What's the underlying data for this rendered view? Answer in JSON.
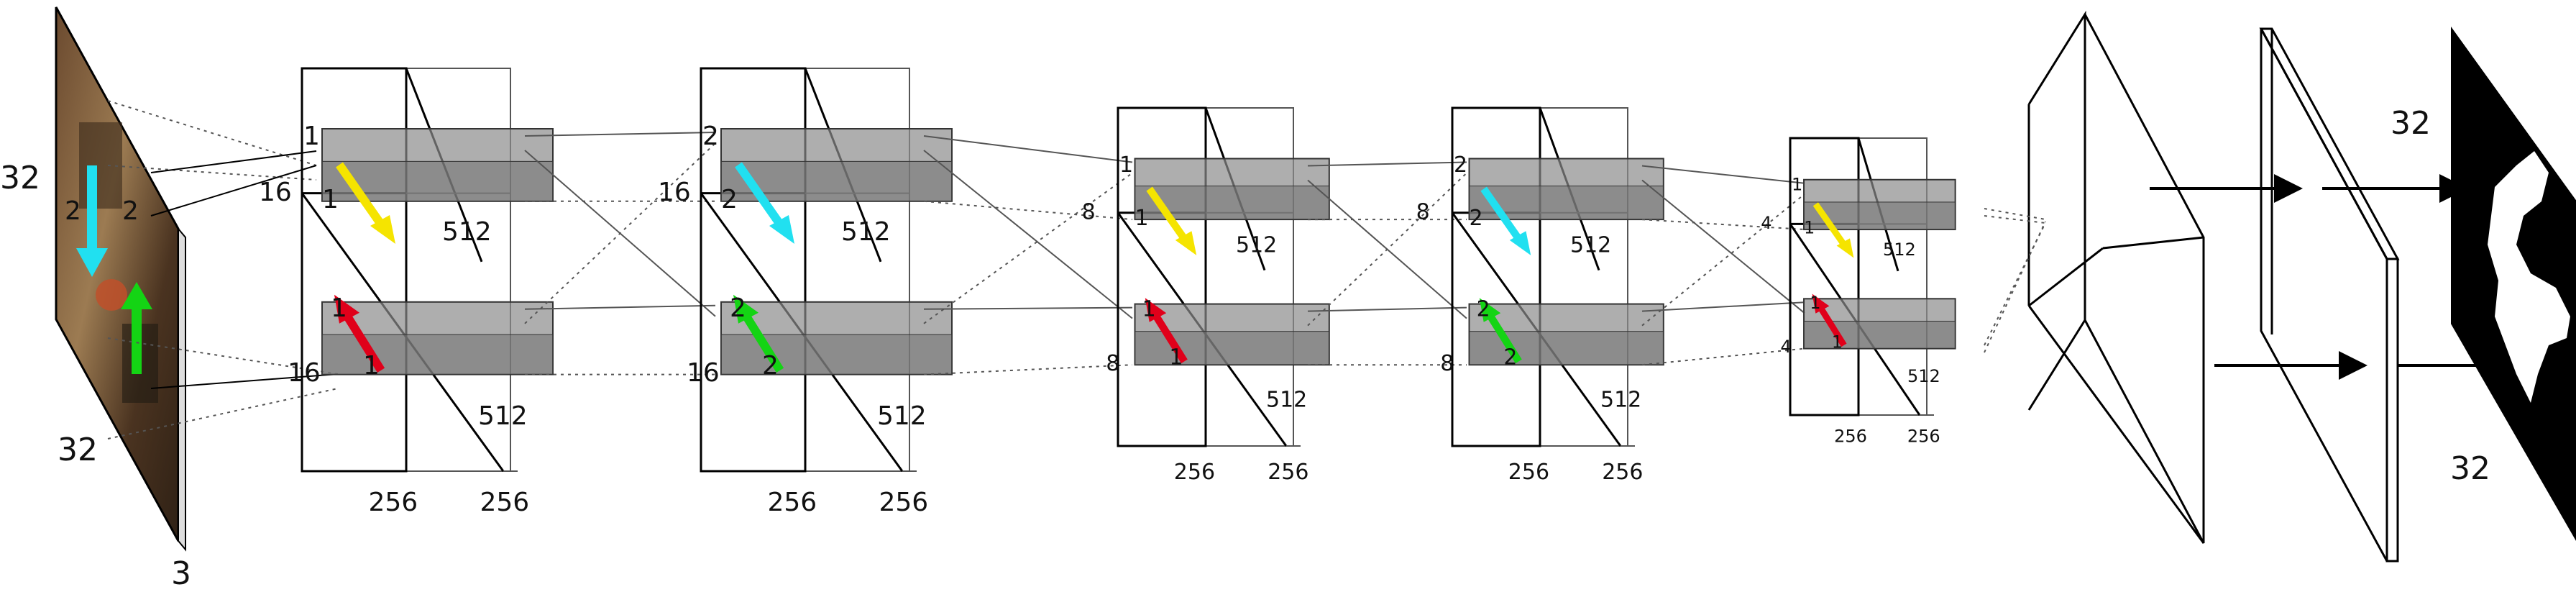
{
  "input": {
    "side_label": "32",
    "bottom_label": "32",
    "depth_label": "3",
    "kernel_label_a": "2",
    "kernel_label_b": "2"
  },
  "blocks": [
    {
      "label_kernel_top": "1",
      "label_kernel_top2": "1",
      "label_side": "16",
      "label_kernel_bot": "1",
      "label_kernel_bot2": "1",
      "label_side_bot": "16",
      "label_depth_top": "512",
      "label_depth_bot": "512",
      "label_width_a": "256",
      "label_width_b": "256"
    },
    {
      "label_kernel_top": "2",
      "label_kernel_top2": "2",
      "label_side": "16",
      "label_kernel_bot": "2",
      "label_kernel_bot2": "2",
      "label_side_bot": "16",
      "label_depth_top": "512",
      "label_depth_bot": "512",
      "label_width_a": "256",
      "label_width_b": "256"
    },
    {
      "label_kernel_top": "1",
      "label_kernel_top2": "1",
      "label_side": "8",
      "label_kernel_bot": "1",
      "label_kernel_bot2": "1",
      "label_side_bot": "8",
      "label_depth_top": "512",
      "label_depth_bot": "512",
      "label_width_a": "256",
      "label_width_b": "256"
    },
    {
      "label_kernel_top": "2",
      "label_kernel_top2": "2",
      "label_side": "8",
      "label_kernel_bot": "2",
      "label_kernel_bot2": "2",
      "label_side_bot": "8",
      "label_depth_top": "512",
      "label_depth_bot": "512",
      "label_width_a": "256",
      "label_width_b": "256"
    },
    {
      "label_kernel_top": "1",
      "label_kernel_top2": "1",
      "label_side": "4",
      "label_kernel_bot": "1",
      "label_kernel_bot2": "1",
      "label_side_bot": "4",
      "label_depth_top": "512",
      "label_depth_bot": "512",
      "label_width_a": "256",
      "label_width_b": "256"
    }
  ],
  "output": {
    "top_label": "32",
    "bottom_label": "32"
  },
  "colors": {
    "yellow": "#f5e400",
    "red": "#e0001a",
    "cyan": "#21e0f0",
    "green": "#14d414",
    "gray_fill": "#8c8c8c"
  }
}
